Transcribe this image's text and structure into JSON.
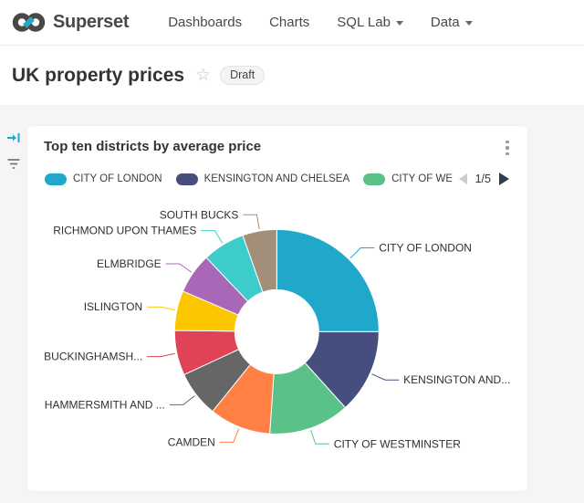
{
  "header": {
    "brand": "Superset",
    "nav_items": [
      {
        "label": "Dashboards",
        "caret": false
      },
      {
        "label": "Charts",
        "caret": false
      },
      {
        "label": "SQL Lab",
        "caret": true
      },
      {
        "label": "Data",
        "caret": true
      }
    ]
  },
  "page": {
    "title": "UK property prices",
    "badge": "Draft"
  },
  "card": {
    "title": "Top ten districts by average price",
    "legend": {
      "items": [
        {
          "label": "CITY OF LONDON",
          "color": "#1FA8C9"
        },
        {
          "label": "KENSINGTON AND CHELSEA",
          "color": "#454E7C"
        },
        {
          "label": "CITY OF WES",
          "color": "#5AC189"
        }
      ],
      "page_indicator": "1/5",
      "prev_enabled": false,
      "next_enabled": true
    }
  },
  "chart_data": {
    "type": "pie",
    "donut": true,
    "title": "Top ten districts by average price",
    "legend_position": "top",
    "values_shown_as": "slice angles only (percent of total estimated from arcs)",
    "slices": [
      {
        "label": "CITY OF LONDON",
        "pct": 25.0,
        "color": "#1FA8C9"
      },
      {
        "label": "KENSINGTON AND...",
        "pct": 13.3,
        "color": "#454E7C"
      },
      {
        "label": "CITY OF WESTMINSTER",
        "pct": 12.8,
        "color": "#5AC189"
      },
      {
        "label": "CAMDEN",
        "pct": 9.7,
        "color": "#FF7F44"
      },
      {
        "label": "HAMMERSMITH AND ...",
        "pct": 7.3,
        "color": "#666666"
      },
      {
        "label": "BUCKINGHAMSH...",
        "pct": 7.1,
        "color": "#E04355"
      },
      {
        "label": "ISLINGTON",
        "pct": 6.3,
        "color": "#FCC700"
      },
      {
        "label": "ELMBRIDGE",
        "pct": 6.4,
        "color": "#A868B7"
      },
      {
        "label": "RICHMOND UPON THAMES",
        "pct": 6.7,
        "color": "#3CCCCB"
      },
      {
        "label": "SOUTH BUCKS",
        "pct": 5.4,
        "color": "#A38F79"
      }
    ],
    "accent_color": "#1FA8C9"
  }
}
